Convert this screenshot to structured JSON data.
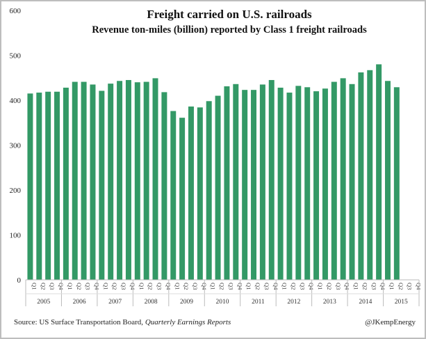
{
  "chart_data": {
    "type": "bar",
    "title": "Freight carried on U.S. railroads",
    "subtitle": "Revenue ton-miles (billion) reported by Class 1 freight railroads",
    "xlabel": "",
    "ylabel": "",
    "ylim": [
      0,
      600
    ],
    "yticks": [
      "0",
      "100",
      "200",
      "300",
      "400",
      "500",
      "600"
    ],
    "years": [
      "2005",
      "2006",
      "2007",
      "2008",
      "2009",
      "2010",
      "2011",
      "2012",
      "2013",
      "2014",
      "2015"
    ],
    "quarters": [
      "Q1",
      "Q2",
      "Q3",
      "Q4"
    ],
    "values": [
      415,
      417,
      419,
      419,
      428,
      441,
      441,
      435,
      421,
      437,
      443,
      445,
      440,
      441,
      449,
      418,
      376,
      361,
      386,
      384,
      398,
      410,
      431,
      436,
      423,
      423,
      435,
      445,
      428,
      417,
      432,
      429,
      420,
      426,
      441,
      449,
      436,
      462,
      467,
      480,
      443,
      429,
      null,
      null
    ],
    "bar_color": "#339966",
    "grid": false,
    "legend": "none"
  },
  "footer": {
    "source_prefix": "Source: US Surface Transportation Board, ",
    "source_italic": "Quarterly Earnings Reports",
    "credit": "@JKempEnergy"
  }
}
